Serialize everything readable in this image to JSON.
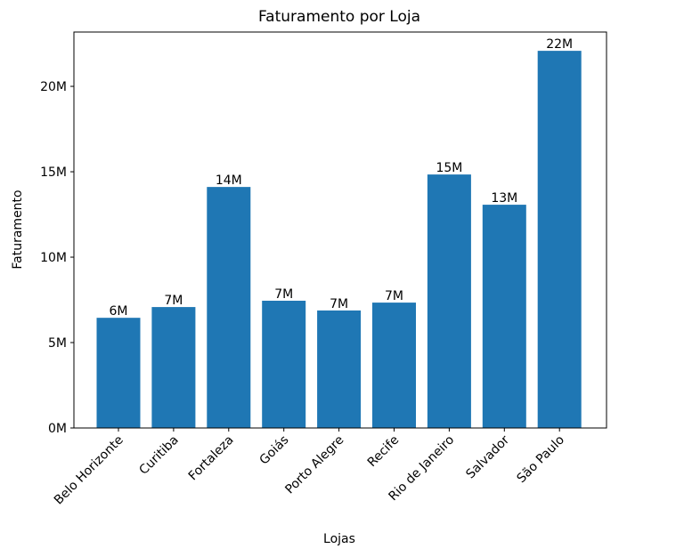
{
  "chart_data": {
    "type": "bar",
    "title": "Faturamento por Loja",
    "xlabel": "Lojas",
    "ylabel": "Faturamento",
    "categories": [
      "Belo Horizonte",
      "Curitiba",
      "Fortaleza",
      "Goiás",
      "Porto Alegre",
      "Recife",
      "Rio de Janeiro",
      "Salvador",
      "São Paulo"
    ],
    "values": [
      6.45,
      7.08,
      14.11,
      7.45,
      6.88,
      7.34,
      14.84,
      13.07,
      22.08
    ],
    "value_labels": [
      "6M",
      "7M",
      "14M",
      "7M",
      "7M",
      "7M",
      "15M",
      "13M",
      "22M"
    ],
    "color": "#1f77b4",
    "ylim": [
      0,
      23.18
    ],
    "yticks": [
      {
        "value": 0,
        "label": "0M"
      },
      {
        "value": 5,
        "label": "5M"
      },
      {
        "value": 10,
        "label": "10M"
      },
      {
        "value": 15,
        "label": "15M"
      },
      {
        "value": 20,
        "label": "20M"
      }
    ],
    "grid": false
  }
}
